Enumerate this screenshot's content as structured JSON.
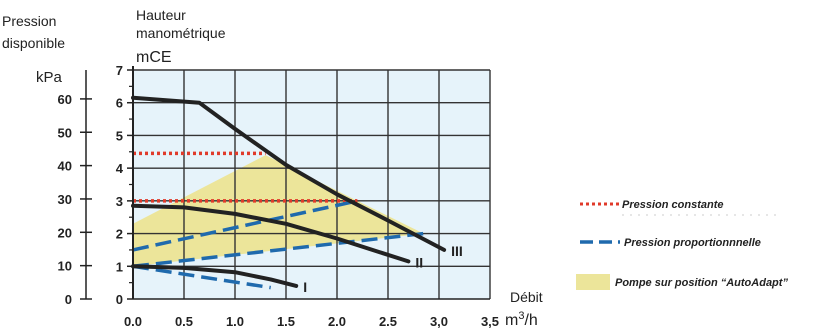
{
  "chart_data": {
    "type": "line",
    "axis_labels": {
      "left_title": "Pression disponible",
      "left_unit": "kPa",
      "mid_title": "Hauteur manométrique",
      "mid_unit": "mCE",
      "x_title": "Débit",
      "x_unit": "m³/h"
    },
    "x_ticks": [
      "0.0",
      "0.5",
      "1.0",
      "1.5",
      "2.0",
      "2.5",
      "3,0",
      "3,5"
    ],
    "y_ticks": [
      "0",
      "1",
      "2",
      "3",
      "4",
      "5",
      "6",
      "7"
    ],
    "kpa_ticks": [
      "0",
      "10",
      "20",
      "30",
      "40",
      "50",
      "60"
    ],
    "xlim": [
      0,
      3.5
    ],
    "ylim": [
      0,
      7
    ],
    "grid": true,
    "background_color": "#e6f3fa",
    "autoadapt_area": {
      "color": "#ece59a",
      "polygon": [
        [
          0,
          1
        ],
        [
          0,
          2.3
        ],
        [
          1.3,
          4.4
        ],
        [
          2.2,
          3
        ],
        [
          2.85,
          2
        ]
      ]
    },
    "pump_curves": [
      {
        "label": "III",
        "points": [
          [
            0,
            6.15
          ],
          [
            0.65,
            6.0
          ],
          [
            1.0,
            5.2
          ],
          [
            1.5,
            4.1
          ],
          [
            2.0,
            3.2
          ],
          [
            2.5,
            2.4
          ],
          [
            3.05,
            1.5
          ]
        ]
      },
      {
        "label": "II",
        "points": [
          [
            0,
            2.85
          ],
          [
            0.5,
            2.8
          ],
          [
            1.0,
            2.6
          ],
          [
            1.5,
            2.3
          ],
          [
            2.0,
            1.85
          ],
          [
            2.4,
            1.45
          ],
          [
            2.7,
            1.15
          ]
        ]
      },
      {
        "label": "I",
        "points": [
          [
            0,
            1.0
          ],
          [
            0.5,
            0.95
          ],
          [
            1.0,
            0.82
          ],
          [
            1.35,
            0.6
          ],
          [
            1.6,
            0.4
          ]
        ]
      }
    ],
    "constant_pressure_lines": [
      {
        "points": [
          [
            0,
            4.45
          ],
          [
            1.3,
            4.45
          ]
        ]
      },
      {
        "points": [
          [
            0,
            3.0
          ],
          [
            2.2,
            3.0
          ]
        ]
      }
    ],
    "proportional_pressure_lines": [
      {
        "points": [
          [
            0,
            1.5
          ],
          [
            2.2,
            3.0
          ]
        ]
      },
      {
        "points": [
          [
            0,
            1.0
          ],
          [
            2.85,
            2.0
          ]
        ]
      },
      {
        "points": [
          [
            0,
            1.0
          ],
          [
            1.35,
            0.35
          ]
        ]
      }
    ],
    "legend": [
      {
        "label": "Pression constante",
        "style": "dotted",
        "color": "#e03a2a"
      },
      {
        "label": "Pression proportionnnelle",
        "style": "dashed",
        "color": "#1f6aad"
      },
      {
        "label": "Pompe sur position “AutoAdapt”",
        "style": "fill",
        "color": "#ece59a"
      }
    ]
  }
}
